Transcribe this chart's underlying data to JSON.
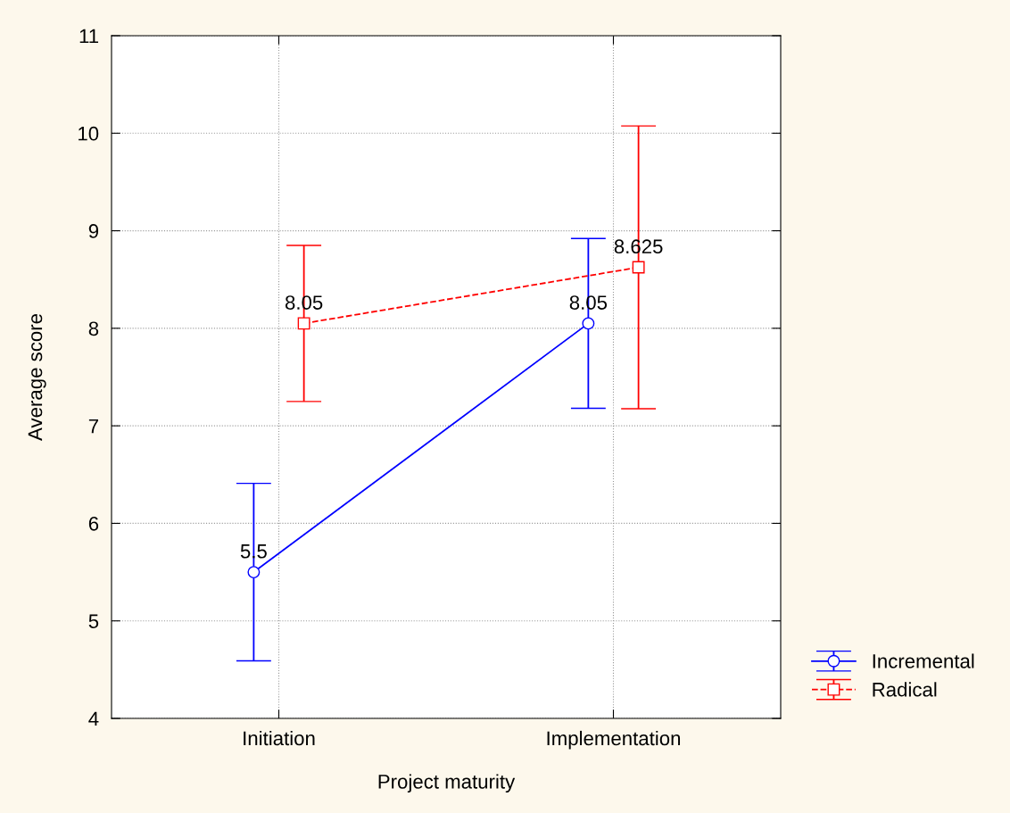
{
  "chart_data": {
    "type": "line",
    "xlabel": "Project maturity",
    "ylabel": "Average score",
    "categories": [
      "Initiation",
      "Implementation"
    ],
    "series": [
      {
        "name": "Incremental",
        "color": "#0000ff",
        "values": [
          5.5,
          8.05
        ],
        "errors": [
          0.91,
          0.87
        ],
        "marker": "circle",
        "line_style": "solid"
      },
      {
        "name": "Radical",
        "color": "#ff0000",
        "values": [
          8.05,
          8.625
        ],
        "errors": [
          0.8,
          1.45
        ],
        "marker": "square",
        "line_style": "dashed"
      }
    ],
    "ylim": [
      4,
      11
    ],
    "yticks": [
      4,
      5,
      6,
      7,
      8,
      9,
      10,
      11
    ],
    "grid": true,
    "legend": "right",
    "data_labels": true
  }
}
